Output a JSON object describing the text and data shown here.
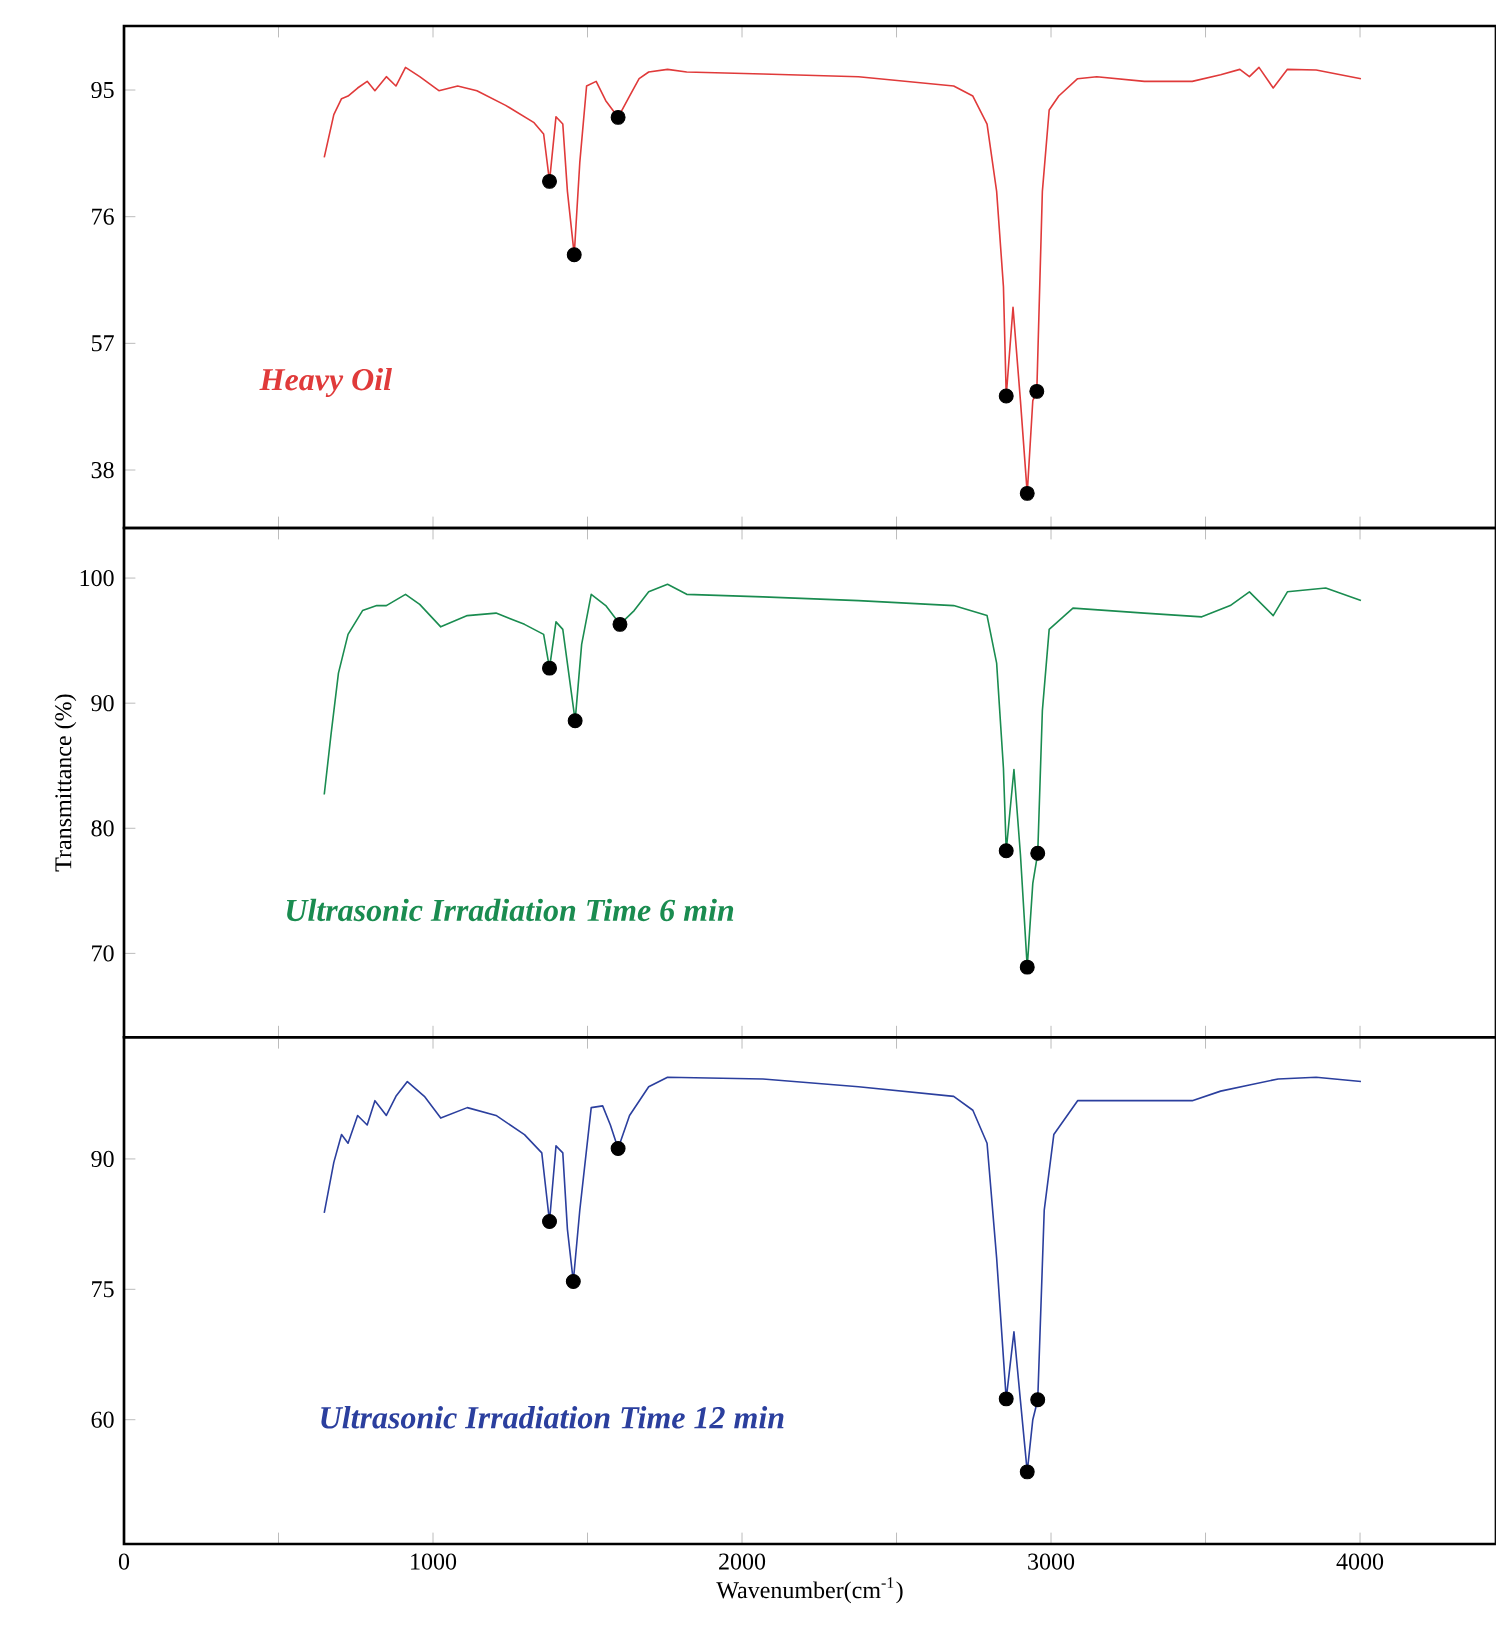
{
  "chart_data": [
    {
      "type": "line",
      "xlim": [
        0,
        4440
      ],
      "ylim": [
        29.3,
        104.6
      ],
      "yticks": [
        38,
        57,
        76,
        95
      ],
      "xticks": [
        0,
        {
          "value": 500,
          "label": null
        },
        1000,
        {
          "value": 1500,
          "label": null
        },
        2000,
        {
          "value": 2500,
          "label": null
        },
        3000,
        {
          "value": 3500,
          "label": null
        },
        4000
      ],
      "tick_labels": "y",
      "series": [
        {
          "name": "Heavy Oil",
          "color": "#e03a3a",
          "x": [
            648,
            679,
            704,
            725,
            756,
            787,
            812,
            849,
            880,
            911,
            957,
            1019,
            1080,
            1142,
            1235,
            1327,
            1358,
            1377,
            1398,
            1420,
            1435,
            1457,
            1475,
            1497,
            1528,
            1559,
            1599,
            1636,
            1667,
            1698,
            1759,
            1821,
            2068,
            2377,
            2685,
            2747,
            2793,
            2824,
            2846,
            2855,
            2877,
            2901,
            2923,
            2941,
            2954,
            2972,
            2994,
            3025,
            3086,
            3148,
            3302,
            3457,
            3549,
            3611,
            3642,
            3673,
            3719,
            3765,
            3858,
            4003
          ],
          "values": [
            84.9,
            91.3,
            93.7,
            94.1,
            95.3,
            96.3,
            94.9,
            97,
            95.6,
            98.4,
            97,
            94.9,
            95.6,
            94.9,
            92.7,
            90.1,
            88.4,
            81.3,
            91,
            89.9,
            79.8,
            70.3,
            84.1,
            95.6,
            96.3,
            93.4,
            90.9,
            94.1,
            96.7,
            97.7,
            98.1,
            97.7,
            97.4,
            97,
            95.6,
            94.1,
            89.9,
            79.8,
            65.5,
            49.1,
            62.4,
            48.4,
            34.5,
            48.4,
            49.8,
            79.8,
            92,
            94.1,
            96.7,
            97,
            96.3,
            96.3,
            97.3,
            98.1,
            97,
            98.4,
            95.3,
            98.1,
            98,
            96.7
          ]
        },
        {
          "type": "scatter",
          "color": "#000000",
          "marker": "circle",
          "x": [
            1377,
            1457,
            1599,
            2855,
            2923,
            2954
          ],
          "values": [
            81.3,
            70.3,
            90.9,
            49.1,
            34.5,
            49.8
          ]
        }
      ]
    },
    {
      "type": "line",
      "xlim": [
        0,
        4440
      ],
      "ylim": [
        63.3,
        104
      ],
      "yticks": [
        70,
        80,
        90,
        100
      ],
      "ylabel": "Transmittance (%)",
      "xticks": [
        0,
        {
          "value": 500,
          "label": null
        },
        1000,
        {
          "value": 1500,
          "label": null
        },
        2000,
        {
          "value": 2500,
          "label": null
        },
        3000,
        {
          "value": 3500,
          "label": null
        },
        4000
      ],
      "tick_labels": "y",
      "series": [
        {
          "name": "Ultrasonic Irradiation Time 6 min",
          "color": "#1a8c50",
          "x": [
            648,
            670,
            694,
            725,
            772,
            818,
            849,
            911,
            957,
            1025,
            1111,
            1204,
            1296,
            1358,
            1377,
            1398,
            1420,
            1460,
            1481,
            1512,
            1559,
            1605,
            1651,
            1698,
            1759,
            1821,
            2068,
            2377,
            2685,
            2793,
            2824,
            2846,
            2855,
            2880,
            2901,
            2923,
            2941,
            2957,
            2972,
            2994,
            3071,
            3302,
            3488,
            3580,
            3642,
            3719,
            3765,
            3889,
            4003
          ],
          "values": [
            82.7,
            87.5,
            92.4,
            95.5,
            97.4,
            97.8,
            97.8,
            98.7,
            97.9,
            96.1,
            97,
            97.2,
            96.3,
            95.5,
            92.8,
            96.5,
            95.9,
            88.6,
            94.7,
            98.7,
            97.8,
            96.3,
            97.4,
            98.9,
            99.5,
            98.7,
            98.5,
            98.2,
            97.8,
            97,
            93.2,
            84.8,
            78.2,
            84.7,
            77.9,
            68.9,
            75.6,
            78,
            89.4,
            95.9,
            97.6,
            97.2,
            96.9,
            97.8,
            98.9,
            97,
            98.9,
            99.2,
            98.2
          ]
        },
        {
          "type": "scatter",
          "color": "#000000",
          "marker": "circle",
          "x": [
            1377,
            1460,
            1605,
            2855,
            2923,
            2957
          ],
          "values": [
            92.8,
            88.6,
            96.3,
            78.2,
            68.9,
            78
          ]
        }
      ]
    },
    {
      "type": "line",
      "xlim": [
        0,
        4440
      ],
      "ylim": [
        45.7,
        104
      ],
      "yticks": [
        60,
        75,
        90
      ],
      "xlabel": "Wavenumber(cm$^{-1}$)",
      "xticks": [
        0,
        {
          "value": 500,
          "label": null
        },
        1000,
        {
          "value": 1500,
          "label": null
        },
        2000,
        {
          "value": 2500,
          "label": null
        },
        3000,
        {
          "value": 3500,
          "label": null
        },
        4000
      ],
      "series": [
        {
          "name": "Ultrasonic Irradiation Time 12 min",
          "color": "#2b3f9e",
          "x": [
            648,
            679,
            704,
            725,
            756,
            787,
            812,
            849,
            880,
            917,
            972,
            1025,
            1111,
            1204,
            1296,
            1352,
            1377,
            1398,
            1420,
            1435,
            1454,
            1475,
            1512,
            1549,
            1574,
            1599,
            1636,
            1698,
            1759,
            2068,
            2377,
            2685,
            2747,
            2793,
            2824,
            2855,
            2880,
            2901,
            2923,
            2941,
            2957,
            2978,
            3009,
            3086,
            3302,
            3457,
            3549,
            3642,
            3735,
            3858,
            4003
          ],
          "values": [
            83.8,
            89.6,
            92.8,
            91.8,
            95,
            93.9,
            96.7,
            95,
            97.2,
            98.9,
            97.2,
            94.7,
            95.9,
            95,
            92.8,
            90.7,
            82.8,
            91.5,
            90.7,
            81.9,
            75.9,
            84.1,
            95.9,
            96.1,
            93.9,
            91.2,
            95,
            98.3,
            99.4,
            99.2,
            98.3,
            97.2,
            95.6,
            91.8,
            78.6,
            62.4,
            70.1,
            62.2,
            54,
            60,
            62.3,
            84.1,
            92.8,
            96.7,
            96.7,
            96.7,
            97.8,
            98.5,
            99.2,
            99.4,
            98.9
          ]
        },
        {
          "type": "scatter",
          "color": "#000000",
          "marker": "circle",
          "x": [
            1377,
            1454,
            1599,
            2855,
            2923,
            2957
          ],
          "values": [
            82.8,
            75.9,
            91.2,
            62.4,
            54,
            62.3
          ]
        }
      ]
    }
  ]
}
